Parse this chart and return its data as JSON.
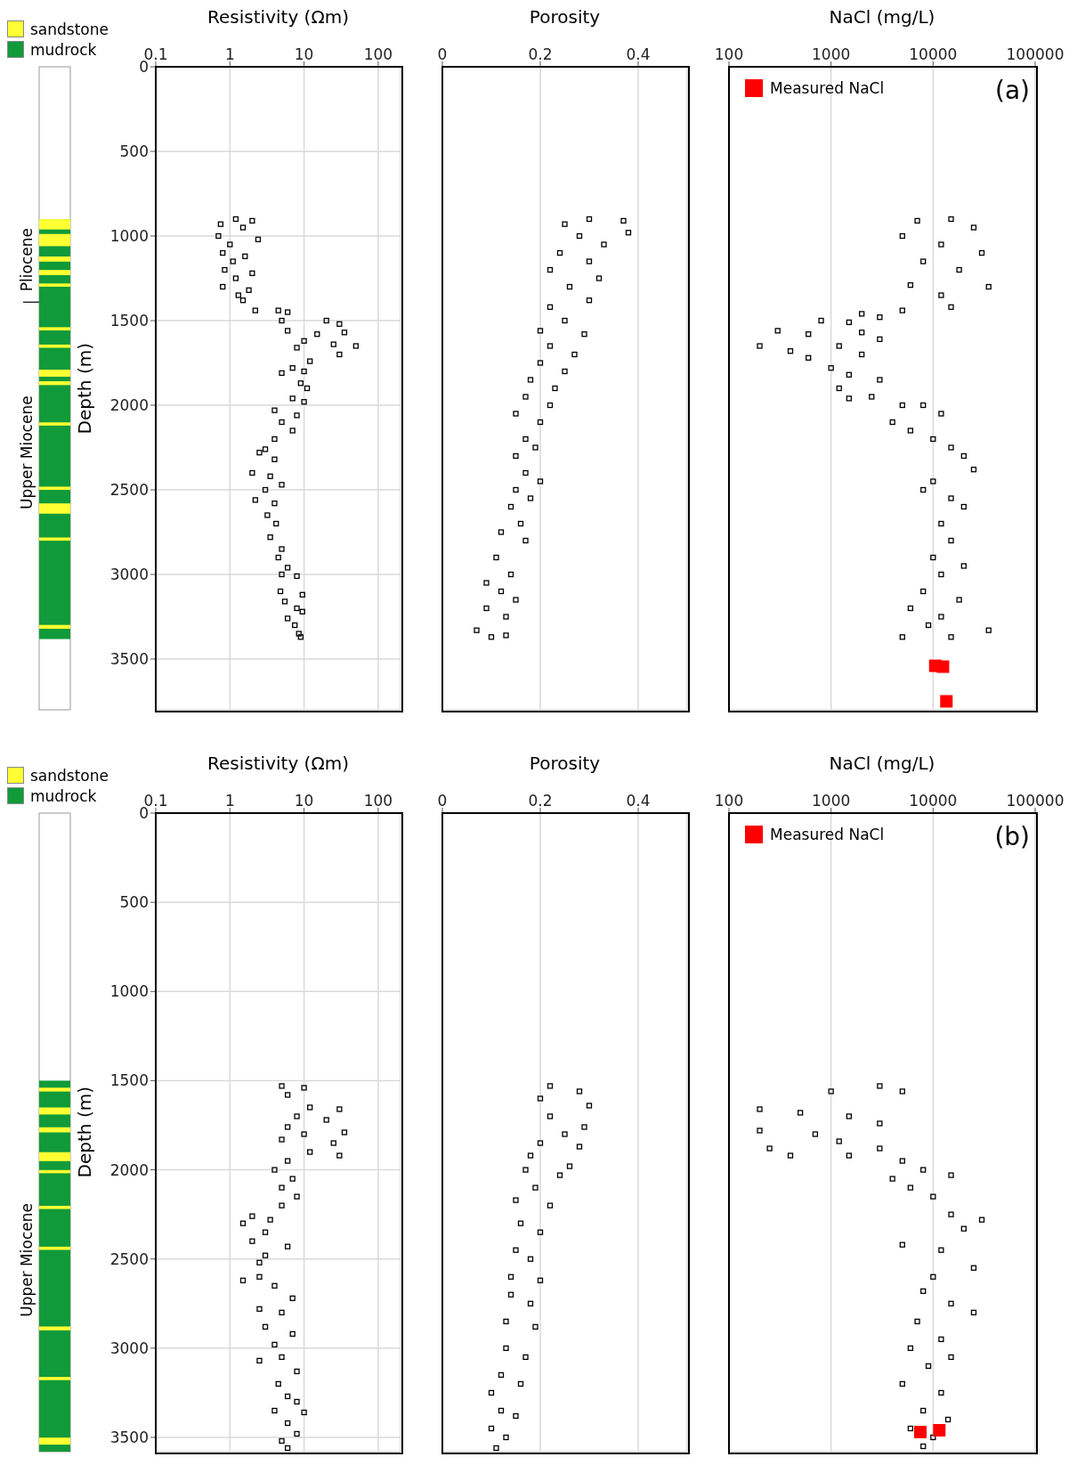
{
  "chart_data": [
    {
      "type": "other",
      "legend": "top",
      "series": [
        {
          "name": "sandstone",
          "color": "#ffff33"
        },
        {
          "name": "mudrock",
          "color": "#109a3a"
        }
      ],
      "annotations": [
        "Pliocene",
        "Upper Miocene"
      ]
    },
    {
      "type": "scatter",
      "xlabel": "Resistivity (Ωm)",
      "ylabel": "Depth (m)",
      "log": "x",
      "grid": true,
      "marker": "square",
      "xlim": [
        0.1,
        200
      ],
      "xticks": [
        0.1,
        1,
        10,
        100
      ],
      "ylim": [
        3800,
        0
      ],
      "yticks": [
        0,
        500,
        1000,
        1500,
        2000,
        2500,
        3000,
        3500
      ],
      "series": [
        {
          "color": "#000000",
          "x": [
            1.2,
            2.0,
            0.75,
            1.5,
            0.7,
            2.4,
            1.0,
            0.8,
            1.6,
            1.1,
            0.85,
            2.0,
            1.2,
            0.8,
            1.8,
            1.3,
            1.5,
            2.2,
            4.5,
            6,
            5,
            20,
            30,
            6,
            15,
            35,
            10,
            50,
            25,
            8,
            30,
            12,
            7,
            10,
            5,
            9,
            11,
            7,
            10,
            4,
            8,
            5,
            7,
            4,
            3,
            2.5,
            4,
            2,
            3.5,
            5,
            3,
            2.2,
            4,
            3.2,
            4.2,
            3.5,
            5,
            4.5,
            6,
            5,
            8,
            4.8,
            9.5,
            5.5,
            8,
            9.5,
            6,
            7.5,
            8.5,
            9
          ],
          "values": [
            900,
            910,
            930,
            950,
            1000,
            1020,
            1050,
            1100,
            1120,
            1150,
            1200,
            1220,
            1250,
            1300,
            1320,
            1350,
            1380,
            1440,
            1440,
            1450,
            1500,
            1500,
            1520,
            1560,
            1580,
            1570,
            1620,
            1650,
            1640,
            1660,
            1700,
            1740,
            1780,
            1800,
            1810,
            1870,
            1900,
            1960,
            1980,
            2030,
            2060,
            2100,
            2150,
            2200,
            2260,
            2280,
            2320,
            2400,
            2420,
            2470,
            2500,
            2560,
            2580,
            2650,
            2700,
            2780,
            2850,
            2900,
            2960,
            3000,
            3010,
            3100,
            3120,
            3160,
            3200,
            3220,
            3260,
            3300,
            3350,
            3370
          ]
        }
      ]
    },
    {
      "type": "scatter",
      "xlabel": "Porosity",
      "grid": true,
      "marker": "square",
      "tick_labels": "x",
      "xlim": [
        0,
        0.5
      ],
      "xticks": [
        0,
        0.2,
        0.4
      ],
      "ylim": [
        3800,
        0
      ],
      "yticks": [
        0,
        500,
        1000,
        1500,
        2000,
        2500,
        3000,
        3500
      ],
      "series": [
        {
          "color": "#000000",
          "x": [
            0.3,
            0.37,
            0.25,
            0.38,
            0.28,
            0.33,
            0.24,
            0.3,
            0.22,
            0.32,
            0.26,
            0.3,
            0.22,
            0.25,
            0.2,
            0.29,
            0.22,
            0.27,
            0.2,
            0.25,
            0.18,
            0.23,
            0.17,
            0.22,
            0.15,
            0.2,
            0.17,
            0.19,
            0.15,
            0.17,
            0.2,
            0.15,
            0.18,
            0.14,
            0.16,
            0.12,
            0.17,
            0.11,
            0.14,
            0.09,
            0.12,
            0.15,
            0.09,
            0.13,
            0.07,
            0.1,
            0.13
          ],
          "values": [
            900,
            910,
            930,
            980,
            1000,
            1050,
            1100,
            1150,
            1200,
            1250,
            1300,
            1380,
            1420,
            1500,
            1560,
            1580,
            1650,
            1700,
            1750,
            1800,
            1850,
            1900,
            1950,
            2000,
            2050,
            2100,
            2200,
            2250,
            2300,
            2400,
            2450,
            2500,
            2550,
            2600,
            2700,
            2750,
            2800,
            2900,
            3000,
            3050,
            3100,
            3150,
            3200,
            3250,
            3330,
            3370,
            3360
          ]
        }
      ]
    },
    {
      "type": "scatter",
      "xlabel": "NaCl (mg/L)",
      "log": "x",
      "grid": true,
      "marker": "square",
      "tick_labels": "x",
      "legend": "top left",
      "annotations": [
        "(a)"
      ],
      "xlim": [
        100,
        100000
      ],
      "xticks": [
        100,
        1000,
        10000,
        100000
      ],
      "ylim": [
        3800,
        0
      ],
      "yticks": [
        0,
        500,
        1000,
        1500,
        2000,
        2500,
        3000,
        3500
      ],
      "series": [
        {
          "color": "#000000",
          "x": [
            7000,
            15000,
            25000,
            5000,
            12000,
            30000,
            8000,
            18000,
            6000,
            35000,
            12000,
            15000,
            5000,
            2000,
            3000,
            800,
            1500,
            300,
            600,
            2000,
            3000,
            200,
            400,
            1200,
            600,
            2000,
            1000,
            1500,
            3000,
            1200,
            2500,
            1500,
            5000,
            8000,
            12000,
            4000,
            6000,
            10000,
            15000,
            20000,
            25000,
            10000,
            8000,
            15000,
            20000,
            12000,
            15000,
            10000,
            20000,
            12000,
            8000,
            18000,
            6000,
            12000,
            9000,
            35000,
            5000,
            15000
          ],
          "values": [
            910,
            900,
            950,
            1000,
            1050,
            1100,
            1150,
            1200,
            1290,
            1300,
            1350,
            1420,
            1440,
            1460,
            1480,
            1500,
            1510,
            1560,
            1580,
            1570,
            1610,
            1650,
            1680,
            1650,
            1720,
            1700,
            1780,
            1820,
            1850,
            1900,
            1950,
            1960,
            2000,
            2000,
            2050,
            2100,
            2150,
            2200,
            2250,
            2300,
            2380,
            2450,
            2500,
            2550,
            2600,
            2700,
            2800,
            2900,
            2950,
            3000,
            3100,
            3150,
            3200,
            3250,
            3300,
            3330,
            3370,
            3370
          ]
        },
        {
          "name": "Measured NaCl",
          "color": "#ff0000",
          "x": [
            10500,
            12500,
            13500
          ],
          "values": [
            3540,
            3545,
            3750
          ]
        }
      ]
    },
    {
      "type": "other",
      "legend": "top",
      "series": [
        {
          "name": "sandstone",
          "color": "#ffff33"
        },
        {
          "name": "mudrock",
          "color": "#109a3a"
        }
      ],
      "annotations": [
        "Upper Miocene"
      ]
    },
    {
      "type": "scatter",
      "xlabel": "Resistivity (Ωm)",
      "ylabel": "Depth (m)",
      "log": "x",
      "grid": true,
      "marker": "square",
      "xlim": [
        0.1,
        200
      ],
      "xticks": [
        0.1,
        1,
        10,
        100
      ],
      "ylim": [
        3580,
        0
      ],
      "yticks": [
        0,
        500,
        1000,
        1500,
        2000,
        2500,
        3000,
        3500
      ],
      "series": [
        {
          "color": "#000000",
          "x": [
            5,
            10,
            6,
            12,
            30,
            8,
            20,
            6,
            35,
            10,
            5,
            25,
            12,
            30,
            6,
            4,
            7,
            5,
            8,
            5,
            2,
            3.5,
            1.5,
            3,
            2,
            6,
            3,
            2.5,
            1.5,
            2.5,
            4,
            7,
            2.5,
            5,
            3,
            7,
            4,
            5,
            2.5,
            8,
            4.5,
            6,
            8,
            4,
            10,
            6,
            8,
            5,
            6
          ],
          "values": [
            1530,
            1540,
            1580,
            1650,
            1660,
            1700,
            1720,
            1760,
            1790,
            1800,
            1830,
            1850,
            1900,
            1920,
            1950,
            2000,
            2050,
            2100,
            2150,
            2200,
            2260,
            2280,
            2300,
            2350,
            2400,
            2430,
            2480,
            2520,
            2620,
            2600,
            2650,
            2720,
            2780,
            2800,
            2880,
            2920,
            2980,
            3050,
            3070,
            3130,
            3200,
            3270,
            3300,
            3350,
            3360,
            3420,
            3480,
            3520,
            3560
          ]
        }
      ]
    },
    {
      "type": "scatter",
      "xlabel": "Porosity",
      "grid": true,
      "marker": "square",
      "tick_labels": "x",
      "xlim": [
        0,
        0.5
      ],
      "xticks": [
        0,
        0.2,
        0.4
      ],
      "ylim": [
        3580,
        0
      ],
      "yticks": [
        0,
        500,
        1000,
        1500,
        2000,
        2500,
        3000,
        3500
      ],
      "series": [
        {
          "color": "#000000",
          "x": [
            0.22,
            0.28,
            0.2,
            0.3,
            0.22,
            0.29,
            0.25,
            0.2,
            0.28,
            0.18,
            0.26,
            0.17,
            0.24,
            0.19,
            0.15,
            0.22,
            0.16,
            0.2,
            0.15,
            0.18,
            0.14,
            0.2,
            0.14,
            0.18,
            0.13,
            0.19,
            0.13,
            0.17,
            0.12,
            0.16,
            0.1,
            0.12,
            0.15,
            0.1,
            0.13,
            0.11
          ],
          "values": [
            1530,
            1560,
            1600,
            1640,
            1700,
            1760,
            1800,
            1850,
            1870,
            1920,
            1980,
            2000,
            2030,
            2100,
            2170,
            2200,
            2300,
            2350,
            2450,
            2500,
            2600,
            2620,
            2700,
            2750,
            2850,
            2880,
            3000,
            3050,
            3150,
            3200,
            3250,
            3350,
            3380,
            3450,
            3500,
            3560
          ]
        }
      ]
    },
    {
      "type": "scatter",
      "xlabel": "NaCl (mg/L)",
      "log": "x",
      "grid": true,
      "marker": "square",
      "tick_labels": "x",
      "legend": "top left",
      "annotations": [
        "(b)"
      ],
      "xlim": [
        100,
        100000
      ],
      "xticks": [
        100,
        1000,
        10000,
        100000
      ],
      "ylim": [
        3580,
        0
      ],
      "yticks": [
        0,
        500,
        1000,
        1500,
        2000,
        2500,
        3000,
        3500
      ],
      "series": [
        {
          "color": "#000000",
          "x": [
            3000,
            1000,
            5000,
            200,
            500,
            1500,
            3000,
            200,
            700,
            1200,
            250,
            3000,
            400,
            1500,
            5000,
            8000,
            4000,
            15000,
            6000,
            10000,
            15000,
            30000,
            20000,
            5000,
            12000,
            25000,
            10000,
            8000,
            15000,
            25000,
            7000,
            12000,
            6000,
            15000,
            9000,
            5000,
            12000,
            8000,
            14000,
            6000,
            10000,
            8000
          ],
          "values": [
            1530,
            1560,
            1560,
            1660,
            1680,
            1700,
            1740,
            1780,
            1800,
            1840,
            1880,
            1880,
            1920,
            1920,
            1950,
            2000,
            2050,
            2030,
            2100,
            2150,
            2250,
            2280,
            2330,
            2420,
            2450,
            2550,
            2600,
            2680,
            2750,
            2800,
            2850,
            2950,
            3000,
            3050,
            3100,
            3200,
            3250,
            3350,
            3400,
            3450,
            3500,
            3550
          ]
        },
        {
          "name": "Measured NaCl",
          "color": "#ff0000",
          "x": [
            7500,
            11500
          ],
          "values": [
            3470,
            3460
          ]
        }
      ]
    }
  ]
}
